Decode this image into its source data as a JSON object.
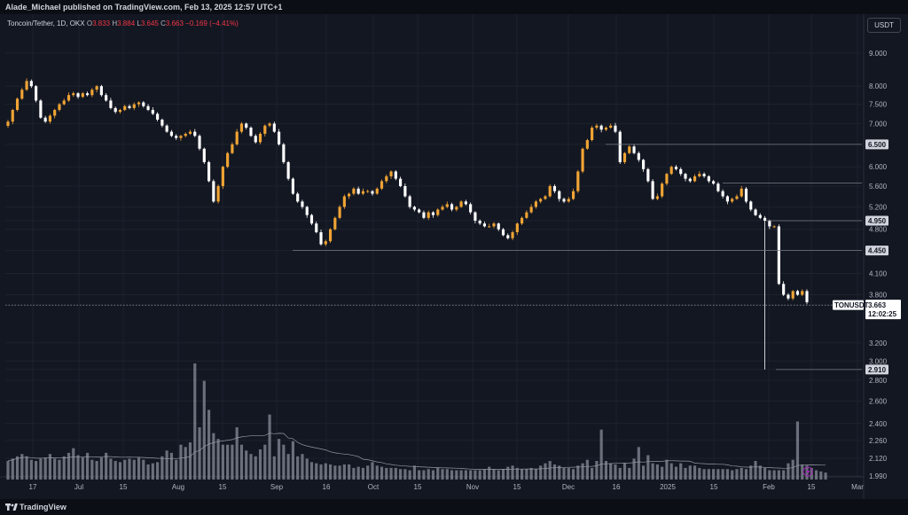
{
  "header": {
    "attribution": "Alade_Michael published on TradingView.com, Feb 13, 2025 12:57 UTC+1"
  },
  "legend": {
    "symbol": "Toncoin/Tether, 1D, OKX",
    "o_label": "O",
    "o": "3.833",
    "h_label": "H",
    "h": "3.884",
    "l_label": "L",
    "l": "3.645",
    "c_label": "C",
    "c": "3.663",
    "change": "−0.169 (−4.41%)"
  },
  "currency_button": "USDT",
  "footer": {
    "brand": "TradingView"
  },
  "colors": {
    "up": "#f0a434",
    "down": "#ffffff",
    "background": "#131722",
    "grid": "#1e222d",
    "volume": "#8a8e99"
  },
  "chart_data": {
    "type": "candlestick",
    "y_scale": "log",
    "ylim": [
      1.9,
      10.0
    ],
    "y_ticks": [
      "9.000",
      "8.000",
      "7.500",
      "7.000",
      "6.500",
      "6.000",
      "5.600",
      "5.200",
      "4.950",
      "4.800",
      "4.450",
      "4.100",
      "3.800",
      "3.663",
      "3.200",
      "3.000",
      "2.910",
      "2.800",
      "2.600",
      "2.400",
      "2.260",
      "2.120",
      "1.990"
    ],
    "x_ticks": [
      "17",
      "Jul",
      "15",
      "Aug",
      "15",
      "Sep",
      "16",
      "Oct",
      "15",
      "Nov",
      "15",
      "Dec",
      "16",
      "2025",
      "15",
      "Feb",
      "15",
      "Mar"
    ],
    "closes": [
      7.05,
      7.35,
      7.65,
      7.9,
      8.15,
      8.0,
      7.6,
      7.15,
      7.05,
      7.2,
      7.35,
      7.5,
      7.6,
      7.75,
      7.8,
      7.7,
      7.8,
      7.75,
      7.9,
      8.0,
      7.75,
      7.6,
      7.4,
      7.3,
      7.35,
      7.45,
      7.4,
      7.5,
      7.55,
      7.45,
      7.35,
      7.25,
      7.1,
      6.95,
      6.8,
      6.7,
      6.65,
      6.7,
      6.75,
      6.8,
      6.7,
      6.4,
      6.1,
      5.7,
      5.3,
      5.6,
      6.0,
      6.3,
      6.5,
      6.8,
      7.0,
      6.9,
      6.7,
      6.55,
      6.75,
      6.95,
      7.0,
      6.8,
      6.5,
      6.1,
      5.75,
      5.45,
      5.3,
      5.2,
      5.05,
      4.9,
      4.75,
      4.55,
      4.6,
      4.8,
      5.0,
      5.2,
      5.4,
      5.45,
      5.55,
      5.45,
      5.5,
      5.5,
      5.45,
      5.55,
      5.7,
      5.8,
      5.9,
      5.75,
      5.6,
      5.4,
      5.2,
      5.15,
      5.1,
      5.0,
      5.1,
      5.05,
      5.15,
      5.2,
      5.25,
      5.15,
      5.2,
      5.3,
      5.25,
      5.1,
      4.95,
      4.9,
      4.85,
      4.85,
      4.9,
      4.8,
      4.7,
      4.65,
      4.75,
      4.9,
      5.0,
      5.1,
      5.2,
      5.3,
      5.35,
      5.4,
      5.6,
      5.5,
      5.35,
      5.3,
      5.35,
      5.5,
      5.9,
      6.4,
      6.6,
      6.9,
      6.95,
      6.85,
      6.9,
      6.95,
      6.8,
      6.1,
      6.3,
      6.45,
      6.3,
      6.15,
      5.95,
      5.7,
      5.35,
      5.4,
      5.65,
      5.85,
      6.0,
      5.95,
      5.85,
      5.75,
      5.7,
      5.8,
      5.85,
      5.8,
      5.7,
      5.65,
      5.5,
      5.4,
      5.3,
      5.35,
      5.4,
      5.55,
      5.3,
      5.15,
      5.05,
      5.0,
      4.95,
      4.85,
      4.85,
      3.95,
      3.8,
      3.75,
      3.85,
      3.8,
      3.85,
      3.7
    ],
    "volume_scale": [
      0,
      1
    ],
    "volumes": [
      0.16,
      0.18,
      0.2,
      0.22,
      0.2,
      0.17,
      0.16,
      0.18,
      0.19,
      0.22,
      0.18,
      0.17,
      0.2,
      0.23,
      0.27,
      0.21,
      0.19,
      0.23,
      0.17,
      0.16,
      0.19,
      0.23,
      0.18,
      0.16,
      0.15,
      0.17,
      0.18,
      0.17,
      0.19,
      0.17,
      0.13,
      0.14,
      0.15,
      0.2,
      0.25,
      0.23,
      0.17,
      0.3,
      0.28,
      0.32,
      1.0,
      0.45,
      0.85,
      0.6,
      0.4,
      0.35,
      0.3,
      0.3,
      0.3,
      0.45,
      0.3,
      0.25,
      0.22,
      0.2,
      0.26,
      0.3,
      0.56,
      0.2,
      0.35,
      0.3,
      0.22,
      0.33,
      0.2,
      0.22,
      0.18,
      0.15,
      0.14,
      0.13,
      0.14,
      0.13,
      0.12,
      0.12,
      0.13,
      0.13,
      0.1,
      0.11,
      0.1,
      0.12,
      0.15,
      0.12,
      0.11,
      0.1,
      0.1,
      0.1,
      0.09,
      0.09,
      0.08,
      0.12,
      0.08,
      0.08,
      0.09,
      0.08,
      0.1,
      0.09,
      0.09,
      0.08,
      0.08,
      0.08,
      0.08,
      0.08,
      0.08,
      0.08,
      0.09,
      0.11,
      0.09,
      0.08,
      0.09,
      0.11,
      0.12,
      0.1,
      0.09,
      0.09,
      0.1,
      0.09,
      0.12,
      0.14,
      0.16,
      0.13,
      0.12,
      0.1,
      0.1,
      0.09,
      0.12,
      0.14,
      0.17,
      0.1,
      0.16,
      0.43,
      0.16,
      0.14,
      0.13,
      0.1,
      0.14,
      0.1,
      0.18,
      0.28,
      0.12,
      0.21,
      0.14,
      0.13,
      0.11,
      0.17,
      0.14,
      0.11,
      0.14,
      0.1,
      0.12,
      0.12,
      0.1,
      0.09,
      0.09,
      0.09,
      0.09,
      0.09,
      0.09,
      0.08,
      0.09,
      0.1,
      0.09,
      0.12,
      0.16,
      0.12,
      0.1,
      0.08,
      0.08,
      0.08,
      0.08,
      0.14,
      0.17,
      0.5,
      0.13,
      0.12,
      0.1,
      0.08,
      0.07,
      0.06
    ]
  }
}
